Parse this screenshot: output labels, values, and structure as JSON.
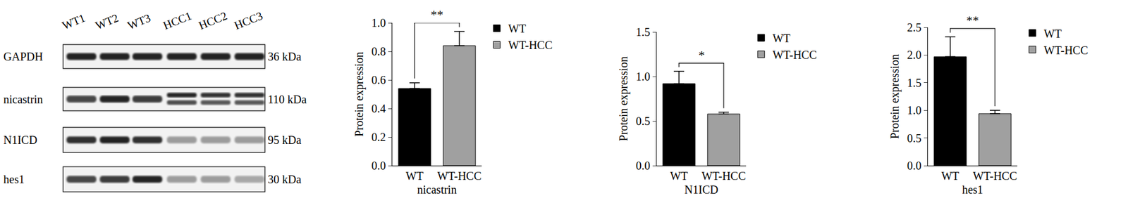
{
  "blot": {
    "lanes": [
      "WT1",
      "WT2",
      "WT3",
      "HCC1",
      "HCC2",
      "HCC3"
    ],
    "rows": [
      {
        "label": "GAPDH",
        "size": "36 kDa"
      },
      {
        "label": "nicastrin",
        "size": "110 kDa"
      },
      {
        "label": "N1ICD",
        "size": "95 kDa"
      },
      {
        "label": "hes1",
        "size": "30 kDa"
      }
    ]
  },
  "chart_data": [
    {
      "type": "bar",
      "x_label": "nicastrin",
      "y_label": "Protein expression",
      "categories": [
        "WT",
        "WT-HCC"
      ],
      "series": [
        {
          "name": "WT",
          "color": "#000000",
          "values": [
            0.54,
            null
          ],
          "errors": [
            0.04,
            null
          ]
        },
        {
          "name": "WT-HCC",
          "color": "#a0a0a0",
          "values": [
            null,
            0.84
          ],
          "errors": [
            null,
            0.1
          ]
        }
      ],
      "ylim": [
        0,
        1.0
      ],
      "yticks": [
        {
          "value": 0,
          "label": "0.0"
        },
        {
          "value": 0.2,
          "label": "0.2"
        },
        {
          "value": 0.4,
          "label": "0.4"
        },
        {
          "value": 0.6,
          "label": "0.6"
        },
        {
          "value": 0.8,
          "label": "0.8"
        },
        {
          "value": 1.0,
          "label": "1.0"
        }
      ],
      "annotations": [
        {
          "text": "**",
          "between": [
            "WT",
            "WT-HCC"
          ]
        }
      ],
      "legend": "right",
      "grid": false
    },
    {
      "type": "bar",
      "x_label": "N1ICD",
      "y_label": "Protein expression",
      "categories": [
        "WT",
        "WT-HCC"
      ],
      "series": [
        {
          "name": "WT",
          "color": "#000000",
          "values": [
            0.92,
            null
          ],
          "errors": [
            0.14,
            null
          ]
        },
        {
          "name": "WT-HCC",
          "color": "#a0a0a0",
          "values": [
            null,
            0.58
          ],
          "errors": [
            null,
            0.02
          ]
        }
      ],
      "ylim": [
        0,
        1.5
      ],
      "yticks": [
        {
          "value": 0,
          "label": "0.0"
        },
        {
          "value": 0.5,
          "label": "0.5"
        },
        {
          "value": 1.0,
          "label": "1.0"
        },
        {
          "value": 1.5,
          "label": "1.5"
        }
      ],
      "annotations": [
        {
          "text": "*",
          "between": [
            "WT",
            "WT-HCC"
          ]
        }
      ],
      "legend": "right",
      "grid": false
    },
    {
      "type": "bar",
      "x_label": "hes1",
      "y_label": "Protein expression",
      "categories": [
        "WT",
        "WT-HCC"
      ],
      "series": [
        {
          "name": "WT",
          "color": "#000000",
          "values": [
            1.97,
            null
          ],
          "errors": [
            0.36,
            null
          ]
        },
        {
          "name": "WT-HCC",
          "color": "#a0a0a0",
          "values": [
            null,
            0.94
          ],
          "errors": [
            null,
            0.06
          ]
        }
      ],
      "ylim": [
        0,
        2.5
      ],
      "yticks": [
        {
          "value": 0,
          "label": "0.0"
        },
        {
          "value": 0.5,
          "label": "0.5"
        },
        {
          "value": 1.0,
          "label": "1.0"
        },
        {
          "value": 1.5,
          "label": "1.5"
        },
        {
          "value": 2.0,
          "label": "2.0"
        },
        {
          "value": 2.5,
          "label": "2.5"
        }
      ],
      "annotations": [
        {
          "text": "**",
          "between": [
            "WT",
            "WT-HCC"
          ]
        }
      ],
      "legend": "right",
      "grid": false
    }
  ]
}
